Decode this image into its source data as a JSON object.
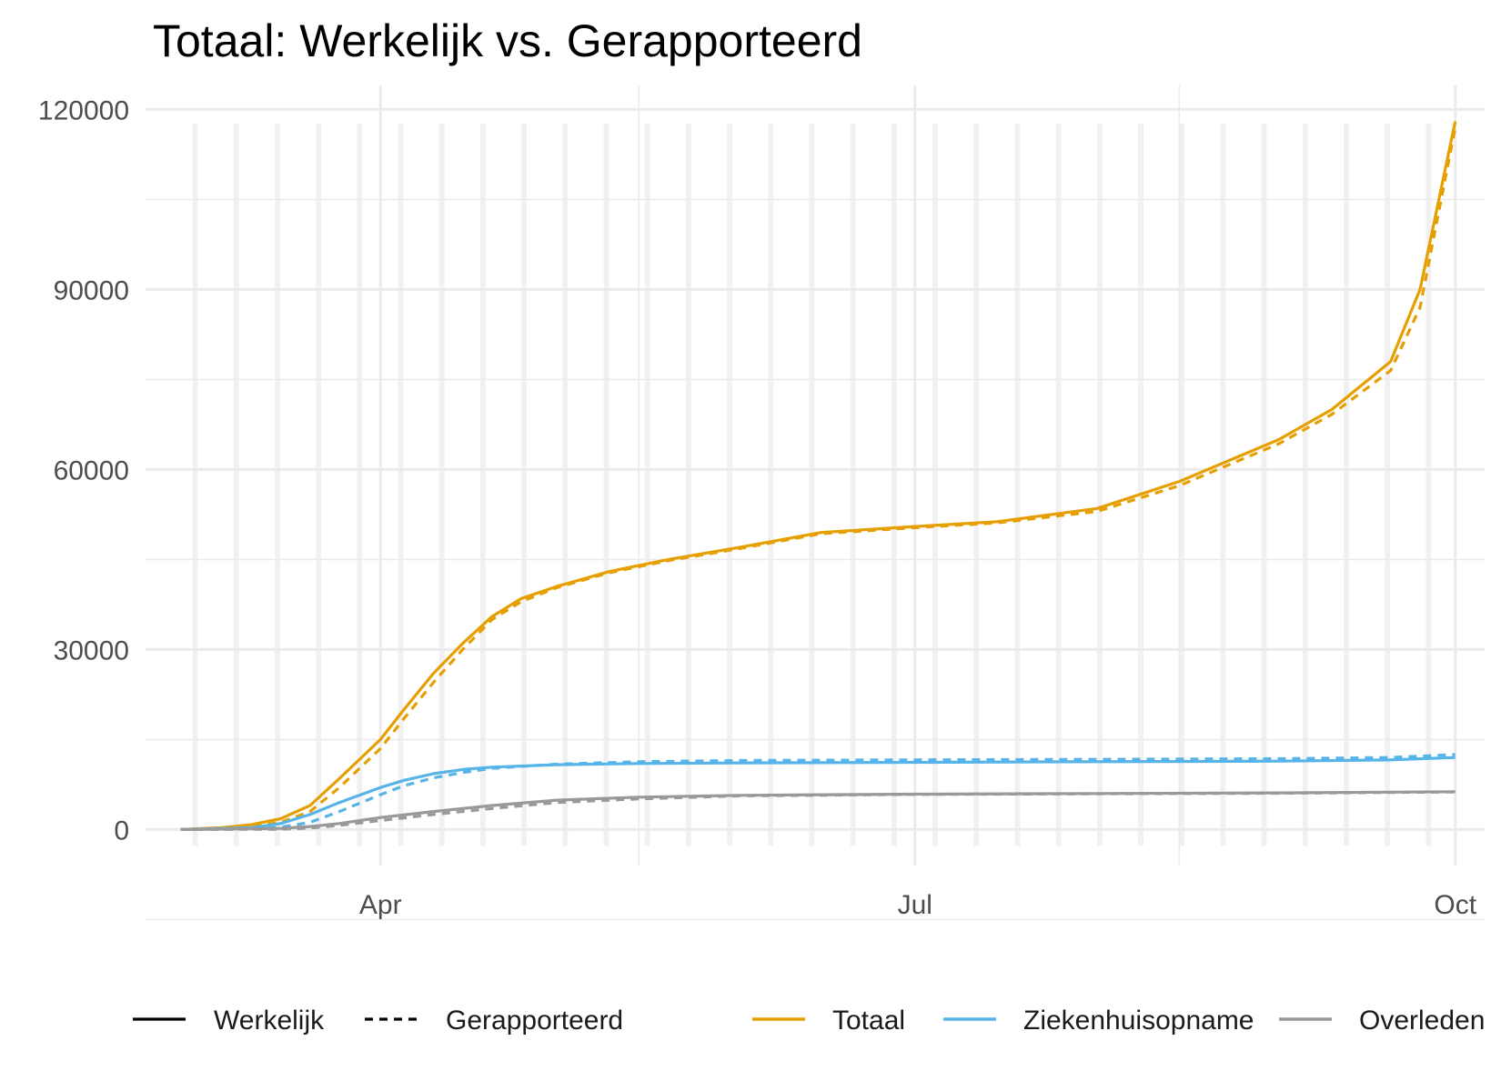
{
  "chart_data": {
    "type": "line",
    "title": "Totaal: Werkelijk vs. Gerapporteerd",
    "xlabel": "",
    "ylabel": "",
    "x_ticks": [
      "Apr",
      "Jul",
      "Oct"
    ],
    "y_ticks": [
      "0",
      "30000",
      "60000",
      "90000",
      "120000"
    ],
    "ylim": [
      -6000,
      124000
    ],
    "xlim": [
      "2020-02-21",
      "2020-10-06"
    ],
    "grid": true,
    "weekend_shading": true,
    "legend_position": "bottom",
    "linetype_legend": [
      {
        "label": "Werkelijk",
        "style": "solid"
      },
      {
        "label": "Gerapporteerd",
        "style": "dashed"
      }
    ],
    "color_legend": [
      {
        "label": "Totaal",
        "color": "#E69F00"
      },
      {
        "label": "Ziekenhuisopname",
        "color": "#56B4E9"
      },
      {
        "label": "Overleden",
        "color": "#999999"
      }
    ],
    "series": [
      {
        "name": "Totaal",
        "linetype": "Werkelijk",
        "color": "#E69F00",
        "x": [
          "2020-02-27",
          "2020-03-05",
          "2020-03-10",
          "2020-03-15",
          "2020-03-20",
          "2020-03-25",
          "2020-04-01",
          "2020-04-05",
          "2020-04-10",
          "2020-04-15",
          "2020-04-20",
          "2020-04-25",
          "2020-05-01",
          "2020-05-10",
          "2020-05-20",
          "2020-06-01",
          "2020-06-15",
          "2020-07-01",
          "2020-07-15",
          "2020-08-01",
          "2020-08-15",
          "2020-09-01",
          "2020-09-10",
          "2020-09-20",
          "2020-09-25",
          "2020-10-01"
        ],
        "y": [
          0,
          300,
          800,
          1800,
          4000,
          8500,
          15000,
          20000,
          26000,
          31000,
          35500,
          38500,
          40500,
          43000,
          45000,
          47000,
          49500,
          50500,
          51300,
          53500,
          58000,
          65000,
          70000,
          78000,
          90000,
          118000
        ]
      },
      {
        "name": "Totaal",
        "linetype": "Gerapporteerd",
        "color": "#E69F00",
        "x": [
          "2020-02-27",
          "2020-03-05",
          "2020-03-10",
          "2020-03-15",
          "2020-03-20",
          "2020-03-25",
          "2020-04-01",
          "2020-04-05",
          "2020-04-10",
          "2020-04-15",
          "2020-04-20",
          "2020-04-25",
          "2020-05-01",
          "2020-05-10",
          "2020-05-20",
          "2020-06-01",
          "2020-06-15",
          "2020-07-01",
          "2020-07-15",
          "2020-08-01",
          "2020-08-15",
          "2020-09-01",
          "2020-09-10",
          "2020-09-20",
          "2020-09-25",
          "2020-10-01"
        ],
        "y": [
          0,
          100,
          500,
          1200,
          3000,
          7000,
          13500,
          18500,
          24500,
          30000,
          35000,
          38000,
          40300,
          42800,
          44800,
          46800,
          49300,
          50300,
          51100,
          53000,
          57300,
          64300,
          69200,
          76500,
          87000,
          117000
        ]
      },
      {
        "name": "Ziekenhuisopname",
        "linetype": "Werkelijk",
        "color": "#56B4E9",
        "x": [
          "2020-02-27",
          "2020-03-10",
          "2020-03-15",
          "2020-03-20",
          "2020-03-25",
          "2020-04-01",
          "2020-04-05",
          "2020-04-10",
          "2020-04-15",
          "2020-04-20",
          "2020-05-01",
          "2020-05-15",
          "2020-06-01",
          "2020-07-01",
          "2020-08-01",
          "2020-09-01",
          "2020-09-20",
          "2020-10-01"
        ],
        "y": [
          0,
          300,
          1000,
          2500,
          4500,
          7000,
          8200,
          9300,
          10000,
          10400,
          10800,
          11000,
          11100,
          11200,
          11300,
          11400,
          11600,
          12000
        ]
      },
      {
        "name": "Ziekenhuisopname",
        "linetype": "Gerapporteerd",
        "color": "#56B4E9",
        "x": [
          "2020-02-27",
          "2020-03-10",
          "2020-03-15",
          "2020-03-20",
          "2020-03-25",
          "2020-04-01",
          "2020-04-05",
          "2020-04-10",
          "2020-04-15",
          "2020-04-20",
          "2020-05-01",
          "2020-05-15",
          "2020-06-01",
          "2020-07-01",
          "2020-08-01",
          "2020-09-01",
          "2020-09-20",
          "2020-10-01"
        ],
        "y": [
          0,
          100,
          400,
          1200,
          3000,
          5800,
          7300,
          8600,
          9500,
          10200,
          10900,
          11300,
          11500,
          11600,
          11700,
          11800,
          12000,
          12500
        ]
      },
      {
        "name": "Overleden",
        "linetype": "Werkelijk",
        "color": "#999999",
        "x": [
          "2020-02-27",
          "2020-03-15",
          "2020-03-20",
          "2020-03-25",
          "2020-04-01",
          "2020-04-10",
          "2020-04-20",
          "2020-05-01",
          "2020-05-15",
          "2020-06-01",
          "2020-07-01",
          "2020-08-01",
          "2020-09-01",
          "2020-10-01"
        ],
        "y": [
          0,
          200,
          500,
          1000,
          2000,
          3000,
          4000,
          4900,
          5400,
          5700,
          5900,
          6000,
          6100,
          6300
        ]
      },
      {
        "name": "Overleden",
        "linetype": "Gerapporteerd",
        "color": "#999999",
        "x": [
          "2020-02-27",
          "2020-03-15",
          "2020-03-20",
          "2020-03-25",
          "2020-04-01",
          "2020-04-10",
          "2020-04-20",
          "2020-05-01",
          "2020-05-15",
          "2020-06-01",
          "2020-07-01",
          "2020-08-01",
          "2020-09-01",
          "2020-10-01"
        ],
        "y": [
          0,
          50,
          250,
          700,
          1500,
          2500,
          3500,
          4500,
          5100,
          5600,
          5850,
          5950,
          6050,
          6250
        ]
      }
    ]
  }
}
